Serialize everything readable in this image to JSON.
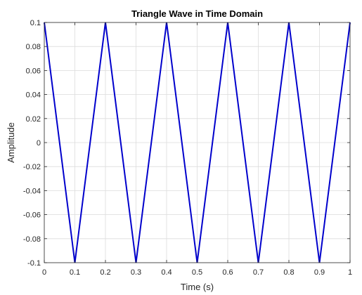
{
  "chart_data": {
    "type": "line",
    "title": "Triangle Wave in Time Domain",
    "xlabel": "Time (s)",
    "ylabel": "Amplitude",
    "xlim": [
      0,
      1
    ],
    "ylim": [
      -0.1,
      0.1
    ],
    "x_ticks": [
      0,
      0.1,
      0.2,
      0.3,
      0.4,
      0.5,
      0.6,
      0.7,
      0.8,
      0.9,
      1
    ],
    "x_tick_labels": [
      "0",
      "0.1",
      "0.2",
      "0.3",
      "0.4",
      "0.5",
      "0.6",
      "0.7",
      "0.8",
      "0.9",
      "1"
    ],
    "y_ticks": [
      -0.1,
      -0.08,
      -0.06,
      -0.04,
      -0.02,
      0,
      0.02,
      0.04,
      0.06,
      0.08,
      0.1
    ],
    "y_tick_labels": [
      "-0.1",
      "-0.08",
      "-0.06",
      "-0.04",
      "-0.02",
      "0",
      "0.02",
      "0.04",
      "0.06",
      "0.08",
      "0.1"
    ],
    "grid": true,
    "box": true,
    "series": [
      {
        "color": "#0000cc",
        "x": [
          0,
          0.1,
          0.2,
          0.3,
          0.4,
          0.5,
          0.6,
          0.7,
          0.8,
          0.9,
          1
        ],
        "y": [
          0.1,
          -0.1,
          0.1,
          -0.1,
          0.1,
          -0.1,
          0.1,
          -0.1,
          0.1,
          -0.1,
          0.1
        ]
      }
    ],
    "colors": {
      "background": "#ffffff",
      "axes": "#262626",
      "grid": "#dcdcdc"
    }
  }
}
